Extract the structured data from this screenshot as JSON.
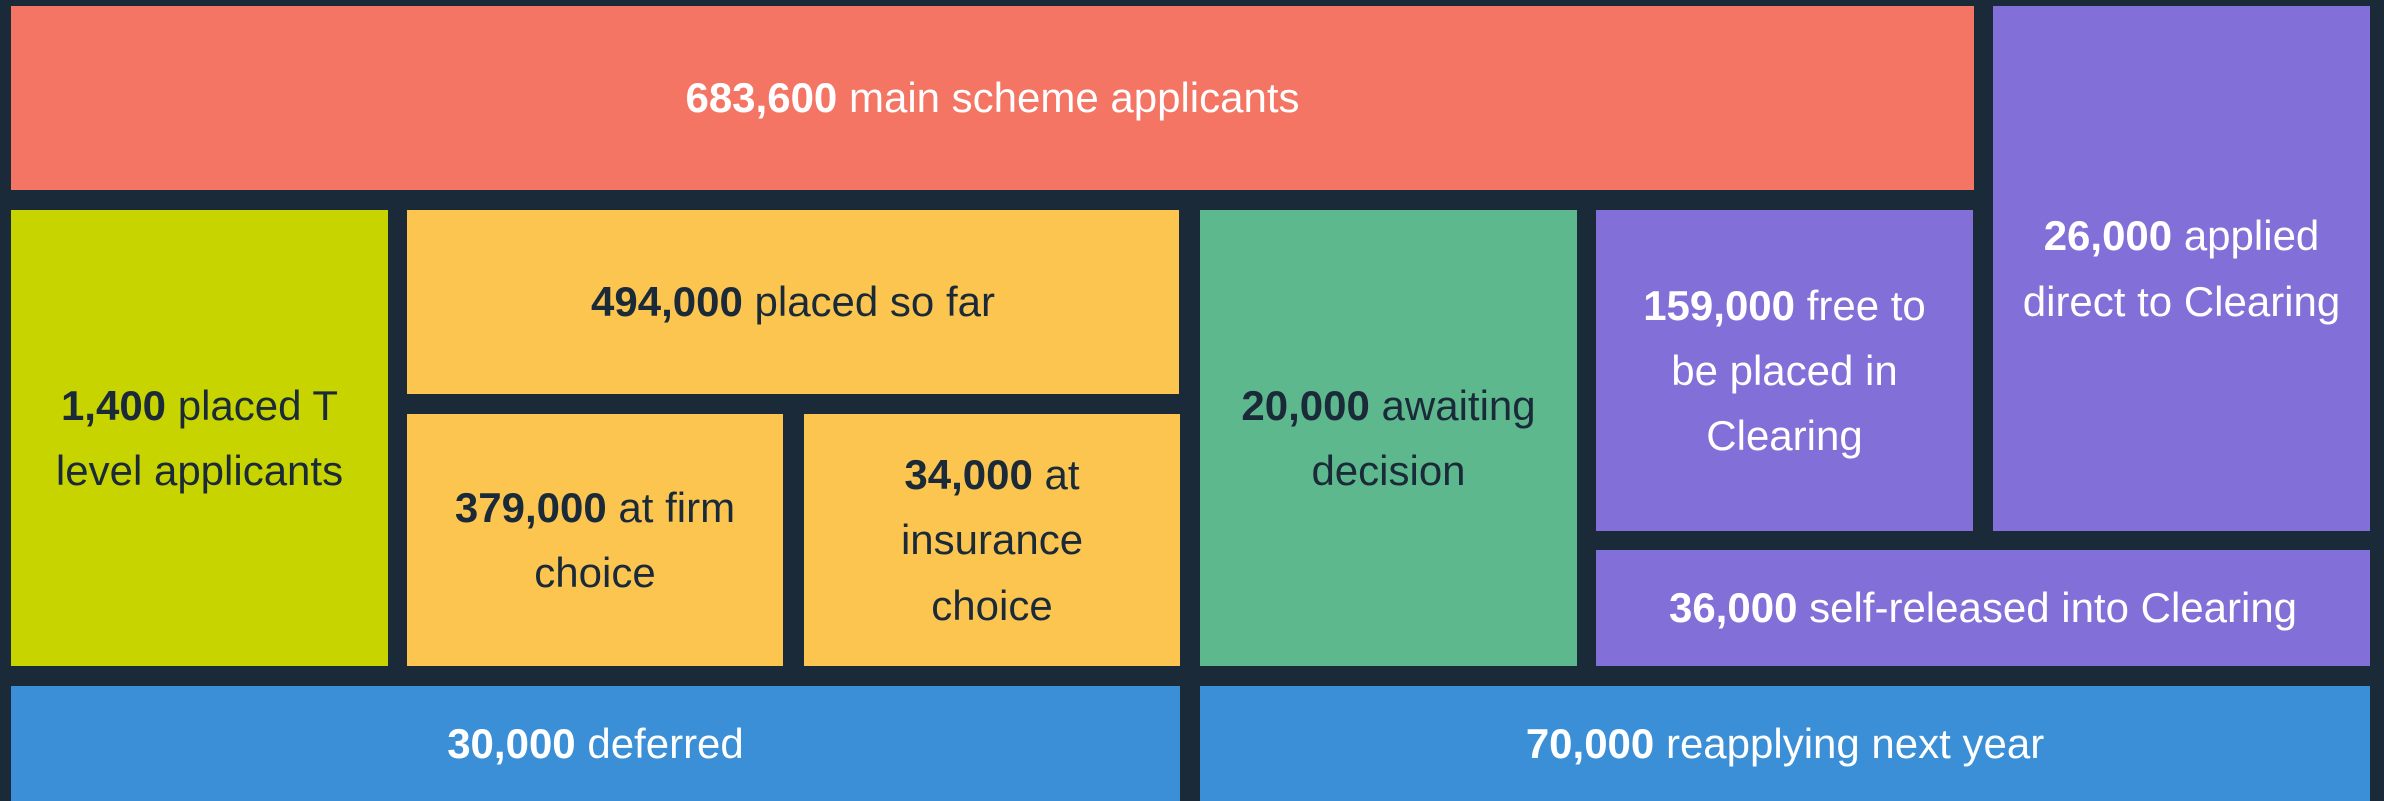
{
  "boxes": [
    {
      "value": "683,600",
      "label": "main scheme applicants"
    },
    {
      "value": "26,000",
      "label": "applied direct to Clearing"
    },
    {
      "value": "1,400",
      "label": "placed T level applicants"
    },
    {
      "value": "494,000",
      "label": "placed so far"
    },
    {
      "value": "379,000",
      "label": "at firm choice"
    },
    {
      "value": "34,000",
      "label": "at insurance choice"
    },
    {
      "value": "20,000",
      "label": "awaiting decision"
    },
    {
      "value": "159,000",
      "label": "free to be placed in Clearing"
    },
    {
      "value": "36,000",
      "label": "self-released into Clearing"
    },
    {
      "value": "30,000",
      "label": "deferred"
    },
    {
      "value": "70,000",
      "label": "reapplying next year"
    }
  ]
}
